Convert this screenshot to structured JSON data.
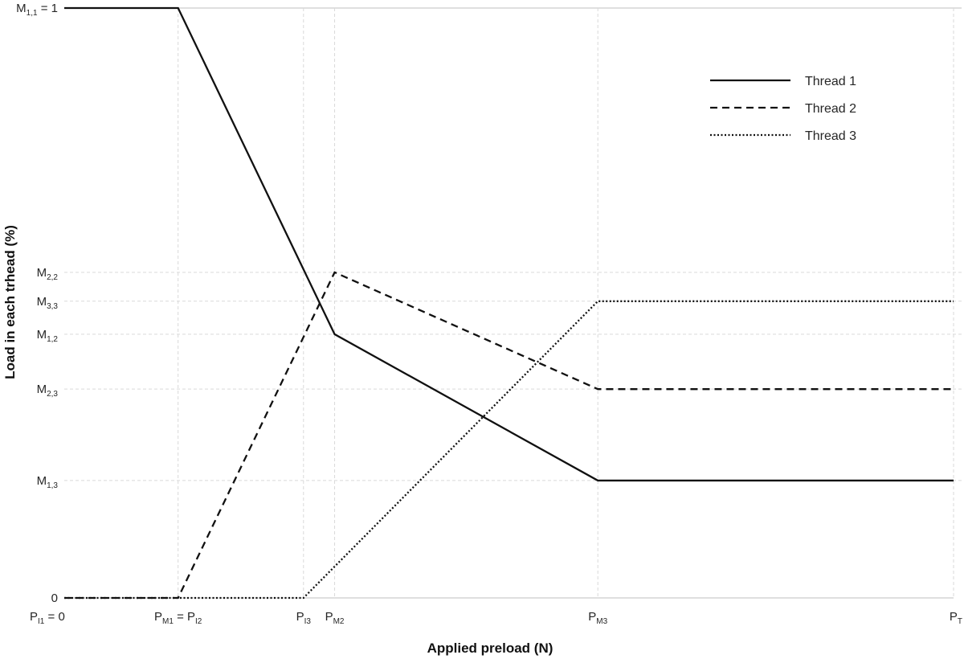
{
  "chart_data": {
    "type": "line",
    "xlabel": "Applied preload (N)",
    "ylabel": "Load in each trhead (%)",
    "x_ticks": [
      {
        "main": "P",
        "sub": "I1",
        "suffix": " = 0",
        "x": 0
      },
      {
        "main": "P",
        "sub": "M1",
        "suffix": " = P",
        "sub2": "I2",
        "x": 0.128
      },
      {
        "main": "P",
        "sub": "I3",
        "suffix": "",
        "x": 0.269
      },
      {
        "main": "P",
        "sub": "M2",
        "suffix": "",
        "x": 0.304
      },
      {
        "main": "P",
        "sub": "M3",
        "suffix": "",
        "x": 0.6
      },
      {
        "main": "P",
        "sub": "T",
        "suffix": "",
        "x": 1
      }
    ],
    "y_ticks": [
      {
        "main": "M",
        "sub": "1,1",
        "suffix": " = 1",
        "y": 1
      },
      {
        "main": "M",
        "sub": "2,2",
        "suffix": "",
        "y": 0.552
      },
      {
        "main": "M",
        "sub": "3,3",
        "suffix": "",
        "y": 0.503
      },
      {
        "main": "M",
        "sub": "1,2",
        "suffix": "",
        "y": 0.447
      },
      {
        "main": "M",
        "sub": "2,3",
        "suffix": "",
        "y": 0.354
      },
      {
        "main": "M",
        "sub": "1,3",
        "suffix": "",
        "y": 0.199
      },
      {
        "main": "0",
        "sub": "",
        "suffix": "",
        "y": 0
      }
    ],
    "xlim": [
      0,
      1
    ],
    "ylim": [
      0,
      1
    ],
    "grid": true,
    "legend_position": "top-right",
    "series": [
      {
        "name": "Thread 1",
        "style": "solid",
        "x": [
          0,
          0.128,
          0.304,
          0.6,
          1
        ],
        "y": [
          1,
          1,
          0.447,
          0.199,
          0.199
        ]
      },
      {
        "name": "Thread 2",
        "style": "dashed",
        "x": [
          0,
          0.128,
          0.304,
          0.6,
          1
        ],
        "y": [
          0,
          0,
          0.552,
          0.354,
          0.354
        ]
      },
      {
        "name": "Thread 3",
        "style": "dotted",
        "x": [
          0,
          0.269,
          0.6,
          1
        ],
        "y": [
          0,
          0,
          0.503,
          0.503
        ]
      }
    ],
    "colors": {
      "series": "#111111",
      "grid": "#d9d9d9",
      "text": "#262626"
    }
  }
}
